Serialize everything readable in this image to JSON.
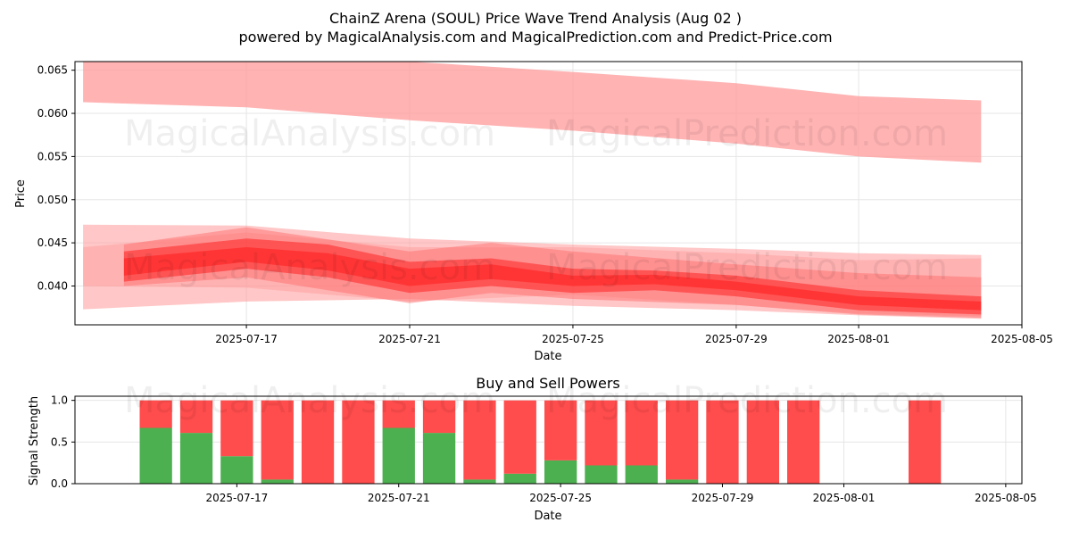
{
  "title_line1": "ChainZ Arena (SOUL) Price Wave Trend Analysis (Aug 02 )",
  "title_line2": "powered by MagicalAnalysis.com and MagicalPrediction.com and Predict-Price.com",
  "watermarks": [
    "MagicalAnalysis.com",
    "MagicalPrediction.com"
  ],
  "colors": {
    "band_light": "#ff9999",
    "band_mid": "#ff6666",
    "band_dark": "#ff2222",
    "buy": "#4caf50",
    "sell": "#ff4c4c",
    "grid": "#e6e6e6"
  },
  "chart_data": [
    {
      "type": "area",
      "title": "",
      "xlabel": "Date",
      "ylabel": "Price",
      "x_range": [
        "2025-07-12.8",
        "2025-08-05"
      ],
      "ylim": [
        0.0355,
        0.066
      ],
      "xticks": [
        "2025-07-17",
        "2025-07-21",
        "2025-07-25",
        "2025-07-29",
        "2025-08-01",
        "2025-08-05"
      ],
      "yticks": [
        "0.040",
        "0.045",
        "0.050",
        "0.055",
        "0.060",
        "0.065"
      ],
      "grid": true,
      "series": [
        {
          "name": "upper band",
          "x": [
            "2025-07-13",
            "2025-07-17",
            "2025-07-21",
            "2025-07-25",
            "2025-07-29",
            "2025-08-01",
            "2025-08-04"
          ],
          "upper": [
            0.0665,
            0.0665,
            0.066,
            0.0648,
            0.0635,
            0.062,
            0.0615
          ],
          "lower": [
            0.0613,
            0.0607,
            0.0592,
            0.058,
            0.0565,
            0.055,
            0.0543
          ],
          "opacity": 0.75
        },
        {
          "name": "wide band",
          "x": [
            "2025-07-13",
            "2025-07-17",
            "2025-07-21",
            "2025-07-25",
            "2025-07-29",
            "2025-08-01",
            "2025-08-04"
          ],
          "upper": [
            0.0471,
            0.047,
            0.0455,
            0.0448,
            0.0443,
            0.0438,
            0.0436
          ],
          "lower": [
            0.0373,
            0.0382,
            0.0385,
            0.0377,
            0.0372,
            0.0366,
            0.0362
          ],
          "opacity": 0.55
        },
        {
          "name": "band 2",
          "x": [
            "2025-07-13",
            "2025-07-17",
            "2025-07-21",
            "2025-07-25",
            "2025-07-29",
            "2025-08-01",
            "2025-08-04"
          ],
          "upper": [
            0.0445,
            0.0462,
            0.0445,
            0.0445,
            0.0438,
            0.043,
            0.0432
          ],
          "lower": [
            0.04,
            0.0398,
            0.0382,
            0.039,
            0.0378,
            0.0368,
            0.0365
          ],
          "opacity": 0.45
        },
        {
          "name": "band 3",
          "x": [
            "2025-07-14",
            "2025-07-17",
            "2025-07-21",
            "2025-07-23",
            "2025-07-25",
            "2025-07-29",
            "2025-08-01",
            "2025-08-04"
          ],
          "upper": [
            0.0448,
            0.0468,
            0.044,
            0.045,
            0.044,
            0.0425,
            0.0415,
            0.041
          ],
          "lower": [
            0.04,
            0.041,
            0.038,
            0.0392,
            0.0385,
            0.0378,
            0.0367,
            0.0363
          ],
          "opacity": 0.45
        },
        {
          "name": "band 4",
          "x": [
            "2025-07-14",
            "2025-07-17",
            "2025-07-19",
            "2025-07-21",
            "2025-07-23",
            "2025-07-25",
            "2025-07-27",
            "2025-07-29",
            "2025-08-01",
            "2025-08-04"
          ],
          "upper": [
            0.044,
            0.0455,
            0.0448,
            0.0428,
            0.0432,
            0.042,
            0.0418,
            0.0412,
            0.0395,
            0.0388
          ],
          "lower": [
            0.0405,
            0.042,
            0.041,
            0.0392,
            0.04,
            0.0392,
            0.0395,
            0.0388,
            0.0372,
            0.0367
          ],
          "opacity": 0.55
        },
        {
          "name": "band 5",
          "x": [
            "2025-07-14",
            "2025-07-17",
            "2025-07-19",
            "2025-07-21",
            "2025-07-23",
            "2025-07-25",
            "2025-07-27",
            "2025-07-29",
            "2025-08-01",
            "2025-08-04"
          ],
          "upper": [
            0.0432,
            0.0445,
            0.0438,
            0.042,
            0.0425,
            0.0412,
            0.0413,
            0.0405,
            0.0388,
            0.0382
          ],
          "lower": [
            0.0412,
            0.0428,
            0.0418,
            0.04,
            0.0408,
            0.04,
            0.0402,
            0.0395,
            0.0378,
            0.0372
          ],
          "opacity": 0.6
        }
      ]
    },
    {
      "type": "bar",
      "title": "Buy and Sell Powers",
      "xlabel": "Date",
      "ylabel": "Signal Strength",
      "ylim": [
        0,
        1.05
      ],
      "yticks": [
        "0.0",
        "0.5",
        "1.0"
      ],
      "xticks": [
        "2025-07-17",
        "2025-07-21",
        "2025-07-25",
        "2025-07-29",
        "2025-08-01",
        "2025-08-05"
      ],
      "grid": true,
      "categories": [
        "2025-07-15",
        "2025-07-16",
        "2025-07-17",
        "2025-07-18",
        "2025-07-19",
        "2025-07-20",
        "2025-07-21",
        "2025-07-22",
        "2025-07-23",
        "2025-07-24",
        "2025-07-25",
        "2025-07-26",
        "2025-07-27",
        "2025-07-28",
        "2025-07-29",
        "2025-07-30",
        "2025-07-31",
        "2025-08-03"
      ],
      "series": [
        {
          "name": "Buy",
          "values": [
            0.67,
            0.61,
            0.33,
            0.05,
            0.0,
            0.0,
            0.67,
            0.61,
            0.05,
            0.12,
            0.28,
            0.22,
            0.22,
            0.05,
            0.0,
            0.0,
            0.0,
            0.0
          ]
        },
        {
          "name": "Sell",
          "values": [
            0.33,
            0.39,
            0.67,
            0.95,
            1.0,
            1.0,
            0.33,
            0.39,
            0.95,
            0.88,
            0.72,
            0.78,
            0.78,
            0.95,
            1.0,
            1.0,
            1.0,
            1.0
          ]
        }
      ]
    }
  ]
}
